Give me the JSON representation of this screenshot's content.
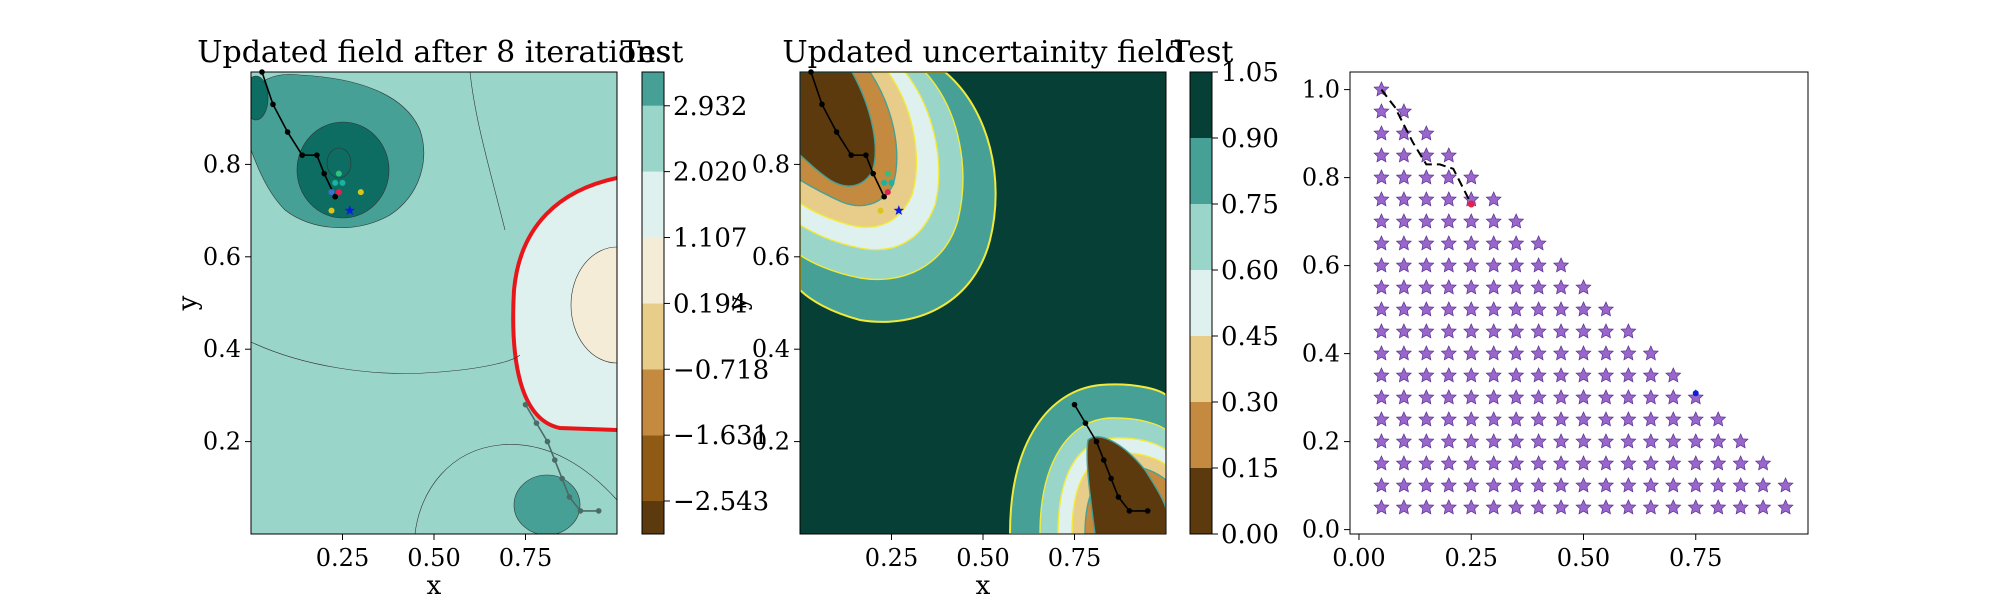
{
  "chart_data": [
    {
      "type": "contour",
      "title": "Updated field after 8 iterations",
      "xlabel": "x",
      "ylabel": "y",
      "xlim": [
        0,
        1
      ],
      "ylim": [
        0,
        1
      ],
      "xticks": [
        0.25,
        0.5,
        0.75
      ],
      "xtick_labels": [
        "0.25",
        "0.50",
        "0.75"
      ],
      "yticks": [
        0.2,
        0.4,
        0.6,
        0.8
      ],
      "ytick_labels": [
        "0.2",
        "0.4",
        "0.6",
        "0.8"
      ],
      "colorbar": {
        "title": "Test",
        "levels": [
          -3.0,
          -2.543,
          -1.631,
          -0.718,
          0.194,
          1.107,
          2.02,
          2.932,
          3.4
        ],
        "tick_values": [
          -2.543,
          -1.631,
          -0.718,
          0.194,
          1.107,
          2.02,
          2.932
        ],
        "tick_labels": [
          "−2.543",
          "−1.631",
          "−0.718",
          "0.194",
          "1.107",
          "2.020",
          "2.932"
        ],
        "colors": [
          "#5c3a0d",
          "#8f5a14",
          "#c48a3f",
          "#e8cd8a",
          "#f5ecd7",
          "#dff1ee",
          "#9ad5ca",
          "#46a096",
          "#0e6d63",
          "#063f35"
        ]
      },
      "zero_contour_color": "#e8161a",
      "path_a": [
        [
          0.03,
          1.0
        ],
        [
          0.06,
          0.93
        ],
        [
          0.1,
          0.87
        ],
        [
          0.14,
          0.82
        ],
        [
          0.18,
          0.82
        ],
        [
          0.2,
          0.78
        ],
        [
          0.23,
          0.73
        ]
      ],
      "path_b": [
        [
          0.75,
          0.28
        ],
        [
          0.78,
          0.24
        ],
        [
          0.81,
          0.2
        ],
        [
          0.83,
          0.16
        ],
        [
          0.85,
          0.12
        ],
        [
          0.87,
          0.08
        ],
        [
          0.9,
          0.05
        ],
        [
          0.95,
          0.05
        ]
      ],
      "samples": [
        {
          "x": 0.23,
          "y": 0.76,
          "color": "#1ab3a0"
        },
        {
          "x": 0.25,
          "y": 0.76,
          "color": "#1ab3a0"
        },
        {
          "x": 0.24,
          "y": 0.78,
          "color": "#2ec27e"
        },
        {
          "x": 0.22,
          "y": 0.74,
          "color": "#3a6fd8"
        },
        {
          "x": 0.24,
          "y": 0.74,
          "color": "#e0224e"
        },
        {
          "x": 0.3,
          "y": 0.74,
          "color": "#d9c61c"
        },
        {
          "x": 0.22,
          "y": 0.7,
          "color": "#d9c61c"
        }
      ],
      "star": {
        "x": 0.27,
        "y": 0.7,
        "color": "#0a1ee0"
      }
    },
    {
      "type": "contour",
      "title": "Updated uncertainity field",
      "xlabel": "x",
      "ylabel": "y",
      "xlim": [
        0,
        1
      ],
      "ylim": [
        0,
        1
      ],
      "xticks": [
        0.25,
        0.5,
        0.75
      ],
      "xtick_labels": [
        "0.25",
        "0.50",
        "0.75"
      ],
      "yticks": [
        0.2,
        0.4,
        0.6,
        0.8
      ],
      "ytick_labels": [
        "0.2",
        "0.4",
        "0.6",
        "0.8"
      ],
      "colorbar": {
        "title": "Test",
        "levels": [
          0.0,
          0.15,
          0.3,
          0.45,
          0.6,
          0.75,
          0.9,
          1.05
        ],
        "tick_values": [
          0.0,
          0.15,
          0.3,
          0.45,
          0.6,
          0.75,
          0.9,
          1.05
        ],
        "tick_labels": [
          "0.00",
          "0.15",
          "0.30",
          "0.45",
          "0.60",
          "0.75",
          "0.90",
          "1.05"
        ],
        "colors": [
          "#5c3a0d",
          "#c48a3f",
          "#e8cd8a",
          "#dff1ee",
          "#9ad5ca",
          "#46a096",
          "#063f35"
        ]
      },
      "band_line_color": "#f2ea3a",
      "path_a": [
        [
          0.03,
          1.0
        ],
        [
          0.06,
          0.93
        ],
        [
          0.1,
          0.87
        ],
        [
          0.14,
          0.82
        ],
        [
          0.18,
          0.82
        ],
        [
          0.2,
          0.78
        ],
        [
          0.23,
          0.73
        ]
      ],
      "path_b": [
        [
          0.75,
          0.28
        ],
        [
          0.78,
          0.24
        ],
        [
          0.81,
          0.2
        ],
        [
          0.83,
          0.16
        ],
        [
          0.85,
          0.12
        ],
        [
          0.87,
          0.08
        ],
        [
          0.9,
          0.05
        ],
        [
          0.95,
          0.05
        ]
      ],
      "samples": [
        {
          "x": 0.23,
          "y": 0.76,
          "color": "#1ab3a0"
        },
        {
          "x": 0.25,
          "y": 0.76,
          "color": "#1ab3a0"
        },
        {
          "x": 0.24,
          "y": 0.78,
          "color": "#2ec27e"
        },
        {
          "x": 0.24,
          "y": 0.74,
          "color": "#e0224e"
        },
        {
          "x": 0.22,
          "y": 0.7,
          "color": "#d9c61c"
        }
      ],
      "star": {
        "x": 0.27,
        "y": 0.7,
        "color": "#0a1ee0"
      }
    },
    {
      "type": "scatter",
      "xlim": [
        -0.02,
        1.0
      ],
      "ylim": [
        -0.01,
        1.04
      ],
      "xticks": [
        0.0,
        0.25,
        0.5,
        0.75
      ],
      "xtick_labels": [
        "0.00",
        "0.25",
        "0.50",
        "0.75"
      ],
      "yticks": [
        0.0,
        0.2,
        0.4,
        0.6,
        0.8,
        1.0
      ],
      "ytick_labels": [
        "0.0",
        "0.2",
        "0.4",
        "0.6",
        "0.8",
        "1.0"
      ],
      "grid_points": {
        "marker": "star",
        "color": "#9966cc",
        "step": 0.05,
        "rule": "points (x, y) on a 0.05 grid with x from 0.05 to 0.95, y from 0.05 to 1.00 and x + y ≤ 1.05 (plus 0.05, 0.05)"
      },
      "path": [
        [
          0.05,
          1.0
        ],
        [
          0.08,
          0.96
        ],
        [
          0.1,
          0.92
        ],
        [
          0.12,
          0.88
        ],
        [
          0.15,
          0.83
        ],
        [
          0.18,
          0.83
        ],
        [
          0.21,
          0.82
        ],
        [
          0.25,
          0.74
        ]
      ],
      "path_end_color": "#e0224e",
      "point": {
        "x": 0.75,
        "y": 0.31,
        "color": "#0a1ee0"
      }
    }
  ]
}
